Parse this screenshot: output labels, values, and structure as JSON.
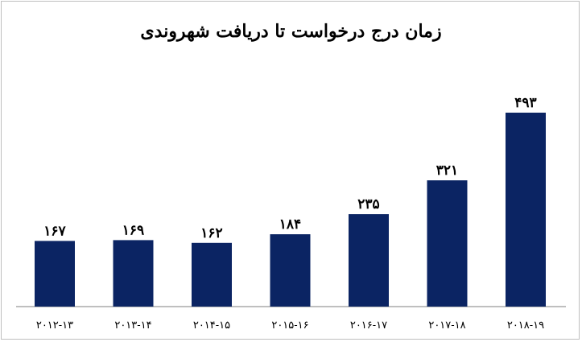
{
  "chart_data": {
    "type": "bar",
    "title": "زمان درج درخواست تا دریافت شهروندی",
    "categories": [
      "۲۰۱۲-۱۳",
      "۲۰۱۳-۱۴",
      "۲۰۱۴-۱۵",
      "۲۰۱۵-۱۶",
      "۲۰۱۶-۱۷",
      "۲۰۱۷-۱۸",
      "۲۰۱۸-۱۹"
    ],
    "values": [
      167,
      169,
      162,
      184,
      235,
      321,
      493
    ],
    "value_labels": [
      "۱۶۷",
      "۱۶۹",
      "۱۶۲",
      "۱۸۴",
      "۲۳۵",
      "۳۲۱",
      "۴۹۳"
    ],
    "xlabel": "",
    "ylabel": "",
    "ylim": [
      0,
      520
    ],
    "grid": false,
    "bar_color": "#0b2463"
  }
}
